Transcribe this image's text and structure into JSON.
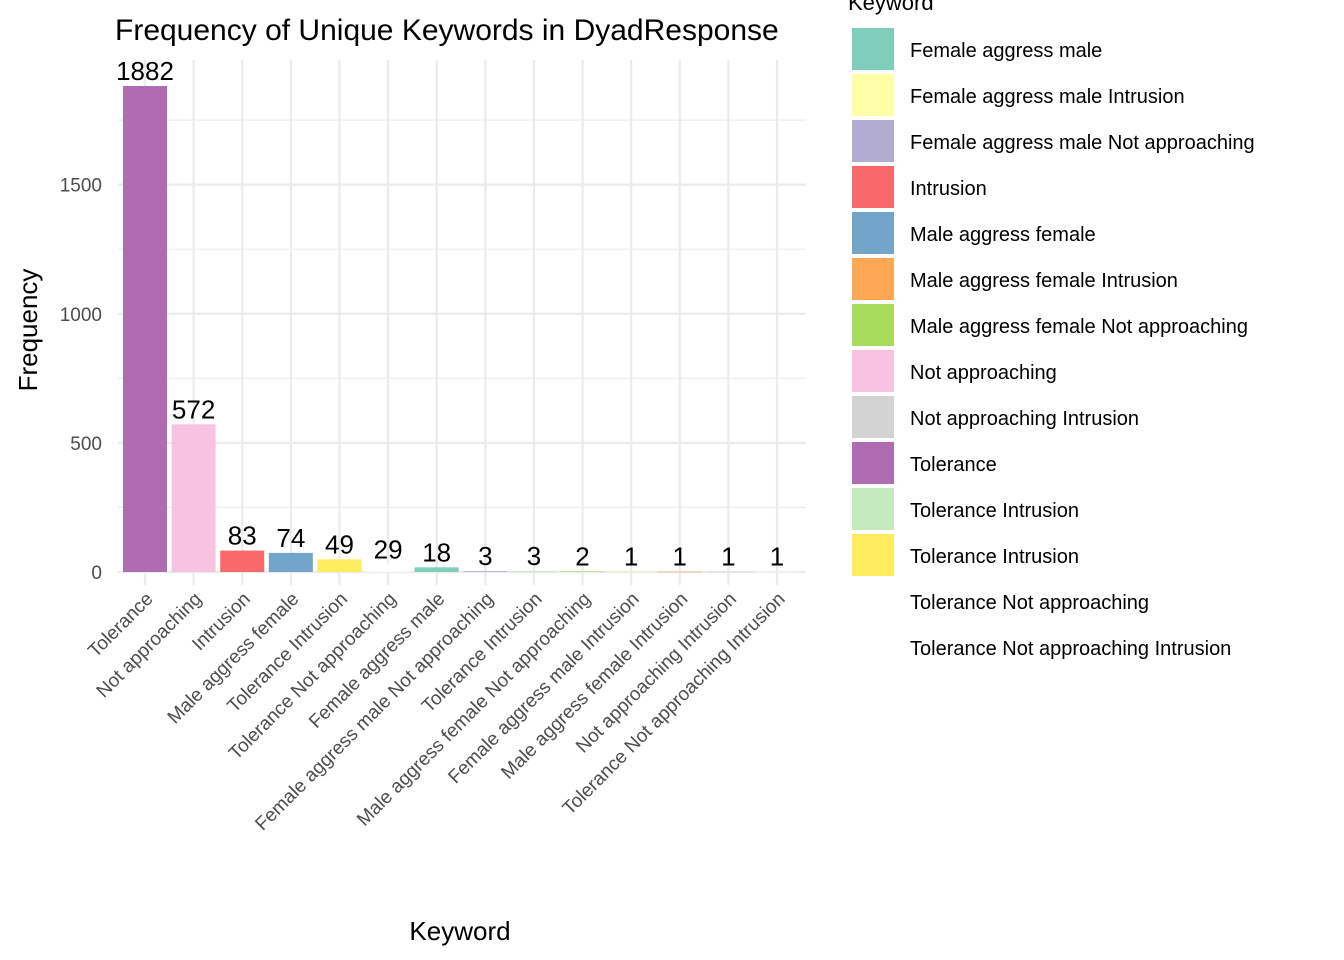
{
  "chart_data": {
    "type": "bar",
    "title": "Frequency of Unique Keywords in DyadResponse",
    "xlabel": "Keyword",
    "ylabel": "Frequency",
    "ylim": [
      0,
      1882
    ],
    "yticks": [
      0,
      500,
      1000,
      1500
    ],
    "grid": true,
    "legend": {
      "title": "Keyword",
      "position": "right",
      "entries": [
        {
          "label": "Female aggress male",
          "color": "#7FCDBB"
        },
        {
          "label": "Female aggress male Intrusion",
          "color": "#FFFFA8"
        },
        {
          "label": "Female aggress male Not approaching",
          "color": "#B2ABD2"
        },
        {
          "label": "Intrusion",
          "color": "#F8696B"
        },
        {
          "label": "Male aggress female",
          "color": "#73A5CA"
        },
        {
          "label": "Male aggress female Intrusion",
          "color": "#FDA654"
        },
        {
          "label": "Male aggress female Not approaching",
          "color": "#A6DB5C"
        },
        {
          "label": "Not approaching",
          "color": "#F8C3E0"
        },
        {
          "label": "Not approaching Intrusion",
          "color": "#D3D3D3"
        },
        {
          "label": "Tolerance",
          "color": "#AF6CB2"
        },
        {
          "label": "Tolerance  Intrusion",
          "color": "#C6EABF"
        },
        {
          "label": "Tolerance Intrusion",
          "color": "#FFEB5E"
        },
        {
          "label": "Tolerance Not approaching",
          "color": "#FFFFFF"
        },
        {
          "label": "Tolerance Not approaching Intrusion",
          "color": "#FFFFFF"
        }
      ]
    },
    "categories": [
      "Tolerance",
      "Not approaching",
      "Intrusion",
      "Male aggress female",
      "Tolerance Intrusion",
      "Tolerance Not approaching",
      "Female aggress male",
      "Female aggress male Not approaching",
      "Tolerance  Intrusion",
      "Male aggress female Not approaching",
      "Female aggress male Intrusion",
      "Male aggress female Intrusion",
      "Not approaching Intrusion",
      "Tolerance Not approaching Intrusion"
    ],
    "values": [
      1882,
      572,
      83,
      74,
      49,
      29,
      18,
      3,
      3,
      2,
      1,
      1,
      1,
      1
    ],
    "colors": [
      "#AF6CB2",
      "#F8C3E0",
      "#F8696B",
      "#73A5CA",
      "#FFEB5E",
      "#FFFFFF",
      "#7FCDBB",
      "#B2ABD2",
      "#C6EABF",
      "#A6DB5C",
      "#FFFFA8",
      "#FDA654",
      "#D3D3D3",
      "#FFFFFF"
    ]
  }
}
